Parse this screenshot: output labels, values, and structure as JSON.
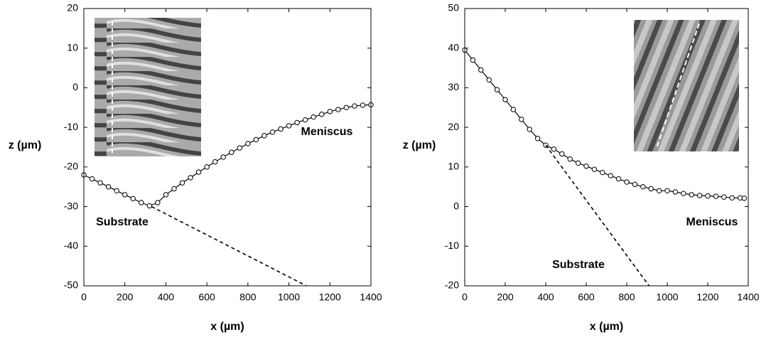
{
  "chart_data": [
    {
      "type": "scatter",
      "xlabel": "x (µm)",
      "ylabel": "z (µm)",
      "xlim": [
        0,
        1400
      ],
      "ylim": [
        -50,
        20
      ],
      "xticks": [
        0,
        200,
        400,
        600,
        800,
        1000,
        1200,
        1400
      ],
      "yticks": [
        -50,
        -40,
        -30,
        -20,
        -10,
        0,
        10,
        20
      ],
      "annotations": [
        "Meniscus",
        "Substrate"
      ],
      "series": [
        {
          "color": "#000000",
          "mode": "markers+line",
          "x": [
            0,
            40,
            80,
            120,
            160,
            200,
            240,
            280,
            320,
            360,
            400,
            440,
            480,
            520,
            560,
            600,
            640,
            680,
            720,
            760,
            800,
            840,
            880,
            920,
            960,
            1000,
            1040,
            1080,
            1120,
            1160,
            1200,
            1240,
            1280,
            1320,
            1360,
            1400
          ],
          "values": [
            -22,
            -23,
            -24,
            -25,
            -26,
            -27,
            -28,
            -29,
            -29.8,
            -29,
            -27,
            -25.5,
            -24,
            -22.7,
            -21.3,
            -20,
            -18.7,
            -17.5,
            -16.3,
            -15.2,
            -14.1,
            -13.1,
            -12.1,
            -11.2,
            -10.4,
            -9.6,
            -8.8,
            -8.1,
            -7.4,
            -6.7,
            -6,
            -5.5,
            -5,
            -4.6,
            -4.4,
            -4.3
          ]
        },
        {
          "color": "#000000",
          "mode": "dashed",
          "x": [
            330,
            1085
          ],
          "values": [
            -30,
            -50
          ]
        }
      ]
    },
    {
      "type": "scatter",
      "xlabel": "x (µm)",
      "ylabel": "z (µm)",
      "xlim": [
        0,
        1400
      ],
      "ylim": [
        -20,
        50
      ],
      "xticks": [
        0,
        200,
        400,
        600,
        800,
        1000,
        1200,
        1400
      ],
      "yticks": [
        -20,
        -10,
        0,
        10,
        20,
        30,
        40,
        50
      ],
      "annotations": [
        "Meniscus",
        "Substrate"
      ],
      "series": [
        {
          "color": "#000000",
          "mode": "markers+line",
          "x": [
            0,
            40,
            80,
            120,
            160,
            200,
            240,
            280,
            320,
            360,
            400,
            440,
            480,
            520,
            560,
            600,
            640,
            680,
            720,
            760,
            800,
            840,
            880,
            920,
            960,
            1000,
            1040,
            1080,
            1120,
            1160,
            1200,
            1240,
            1280,
            1320,
            1360,
            1380
          ],
          "values": [
            39.5,
            37,
            34.5,
            32,
            29.5,
            27,
            24.5,
            22,
            19.5,
            17.2,
            15.5,
            14.5,
            13.3,
            12,
            11,
            10.2,
            9.4,
            8.6,
            7.8,
            7,
            6.2,
            5.6,
            5,
            4.5,
            4,
            4,
            3.7,
            3.3,
            3,
            2.8,
            2.7,
            2.6,
            2.4,
            2.2,
            2.2,
            2.1
          ]
        },
        {
          "color": "#000000",
          "mode": "dashed",
          "x": [
            400,
            910
          ],
          "values": [
            15.5,
            -20
          ]
        }
      ]
    }
  ]
}
